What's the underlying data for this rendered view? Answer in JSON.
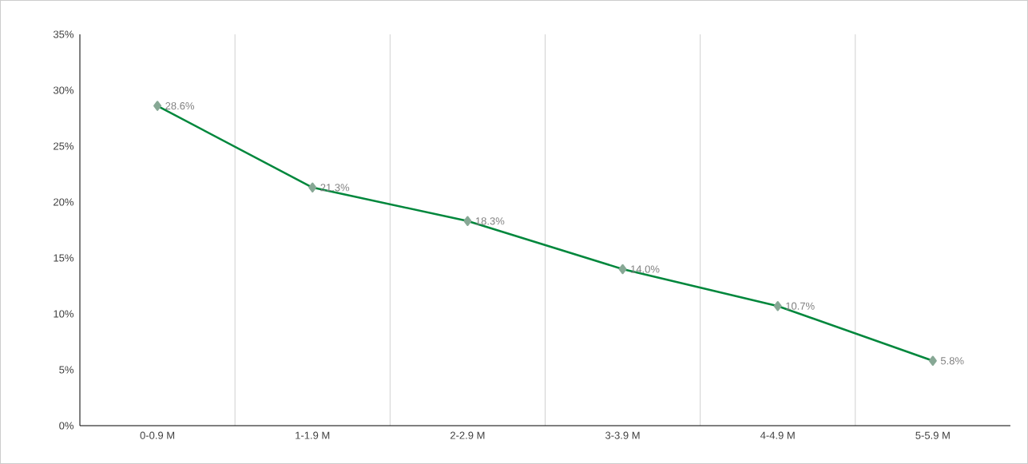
{
  "chart_data": {
    "type": "line",
    "categories": [
      "0-0.9 M",
      "1-1.9 M",
      "2-2.9 M",
      "3-3.9 M",
      "4-4.9 M",
      "5-5.9 M"
    ],
    "series": [
      {
        "color": "#00873c",
        "values": [
          28.6,
          21.3,
          18.3,
          14.0,
          10.7,
          5.8
        ],
        "value_labels": [
          "28.6%",
          "21.3%",
          "18.3%",
          "14.0%",
          "10.7%",
          "5.8%"
        ]
      }
    ],
    "ylim": [
      0,
      35
    ],
    "yticks": [
      {
        "value": 0,
        "label": "0%"
      },
      {
        "value": 5,
        "label": "5%"
      },
      {
        "value": 10,
        "label": "10%"
      },
      {
        "value": 15,
        "label": "15%"
      },
      {
        "value": 20,
        "label": "20%"
      },
      {
        "value": 25,
        "label": "25%"
      },
      {
        "value": 30,
        "label": "30%"
      },
      {
        "value": 35,
        "label": "35%"
      }
    ],
    "grid": "x",
    "marker": "diamond",
    "line_style": "solid"
  }
}
